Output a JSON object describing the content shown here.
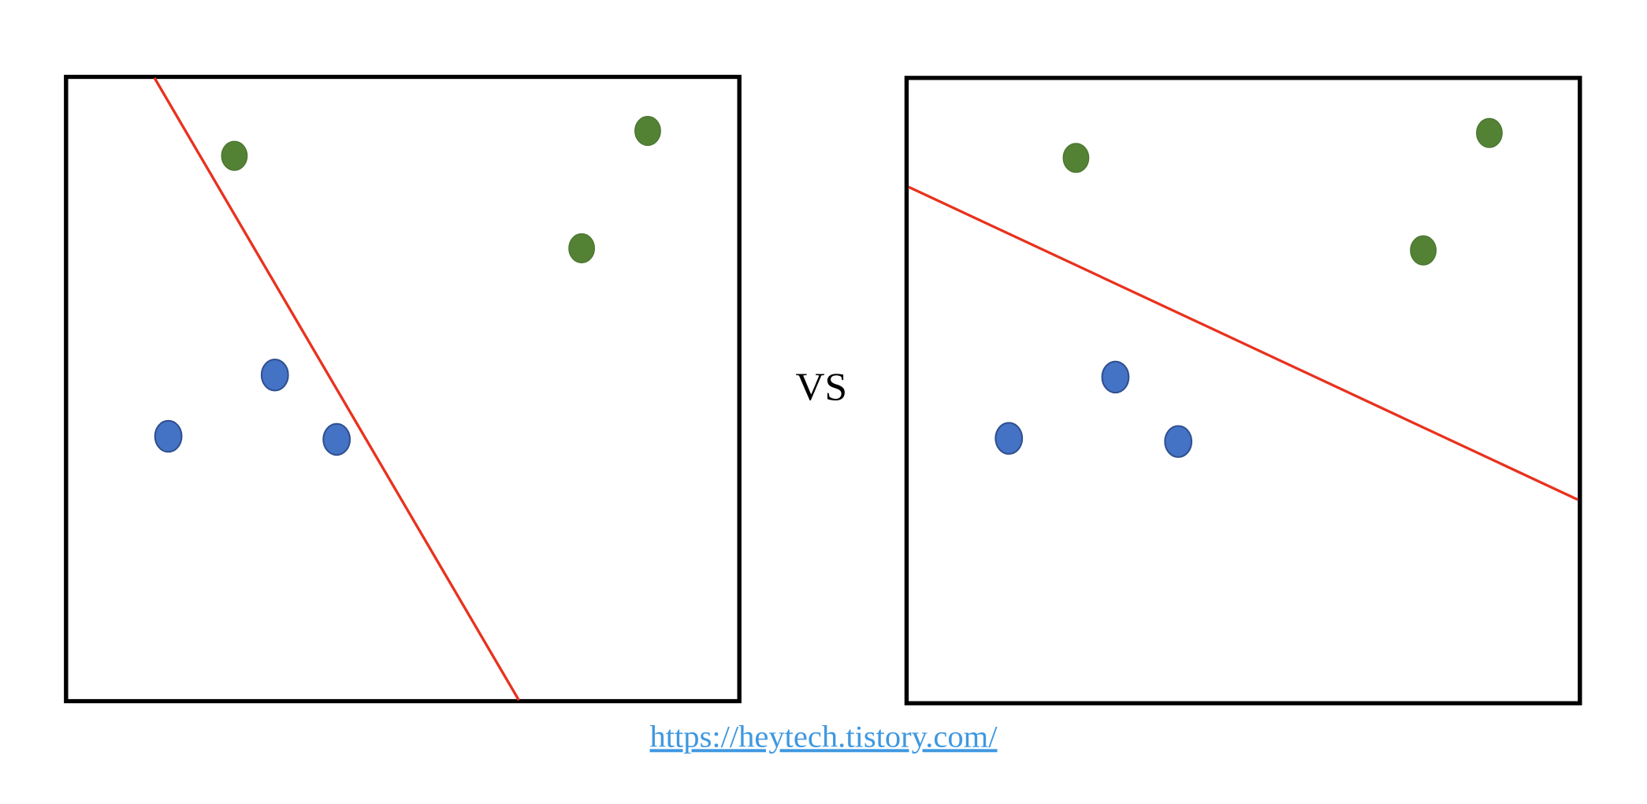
{
  "separator": "VS",
  "link": {
    "text": "https://heytech.tistory.com/"
  }
}
